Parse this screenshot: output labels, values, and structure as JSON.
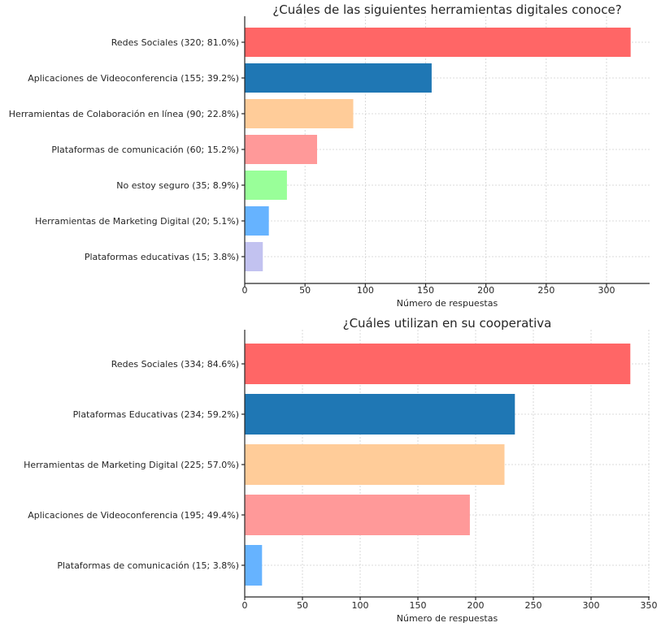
{
  "chart_data": [
    {
      "type": "bar",
      "orientation": "horizontal",
      "title": "¿Cuáles de las siguientes herramientas digitales conoce?",
      "xlabel": "Número de respuestas",
      "ylabel": "",
      "xlim": [
        0,
        335
      ],
      "xticks": [
        0,
        50,
        100,
        150,
        200,
        250,
        300
      ],
      "grid": true,
      "categories": [
        "Redes Sociales (320; 81.0%)",
        "Aplicaciones de Videoconferencia (155; 39.2%)",
        "Herramientas de Colaboración en línea (90; 22.8%)",
        "Plataformas de comunicación (60; 15.2%)",
        "No estoy seguro (35; 8.9%)",
        "Herramientas de Marketing Digital (20; 5.1%)",
        "Plataformas educativas (15; 3.8%)"
      ],
      "values": [
        320,
        155,
        90,
        60,
        35,
        20,
        15
      ],
      "colors": [
        "#ff6666",
        "#1f77b4",
        "#ffcc99",
        "#ff9999",
        "#99ff99",
        "#66b3ff",
        "#c2c2f0"
      ]
    },
    {
      "type": "bar",
      "orientation": "horizontal",
      "title": "¿Cuáles utilizan en su cooperativa",
      "xlabel": "Número de respuestas",
      "ylabel": "",
      "xlim": [
        0,
        350
      ],
      "xticks": [
        0,
        50,
        100,
        150,
        200,
        250,
        300,
        350
      ],
      "grid": true,
      "categories": [
        "Redes Sociales (334; 84.6%)",
        "Plataformas Educativas (234; 59.2%)",
        "Herramientas de Marketing Digital (225; 57.0%)",
        "Aplicaciones de Videoconferencia (195; 49.4%)",
        "Plataformas de comunicación (15; 3.8%)"
      ],
      "values": [
        334,
        234,
        225,
        195,
        15
      ],
      "colors": [
        "#ff6666",
        "#1f77b4",
        "#ffcc99",
        "#ff9999",
        "#66b3ff"
      ]
    }
  ]
}
